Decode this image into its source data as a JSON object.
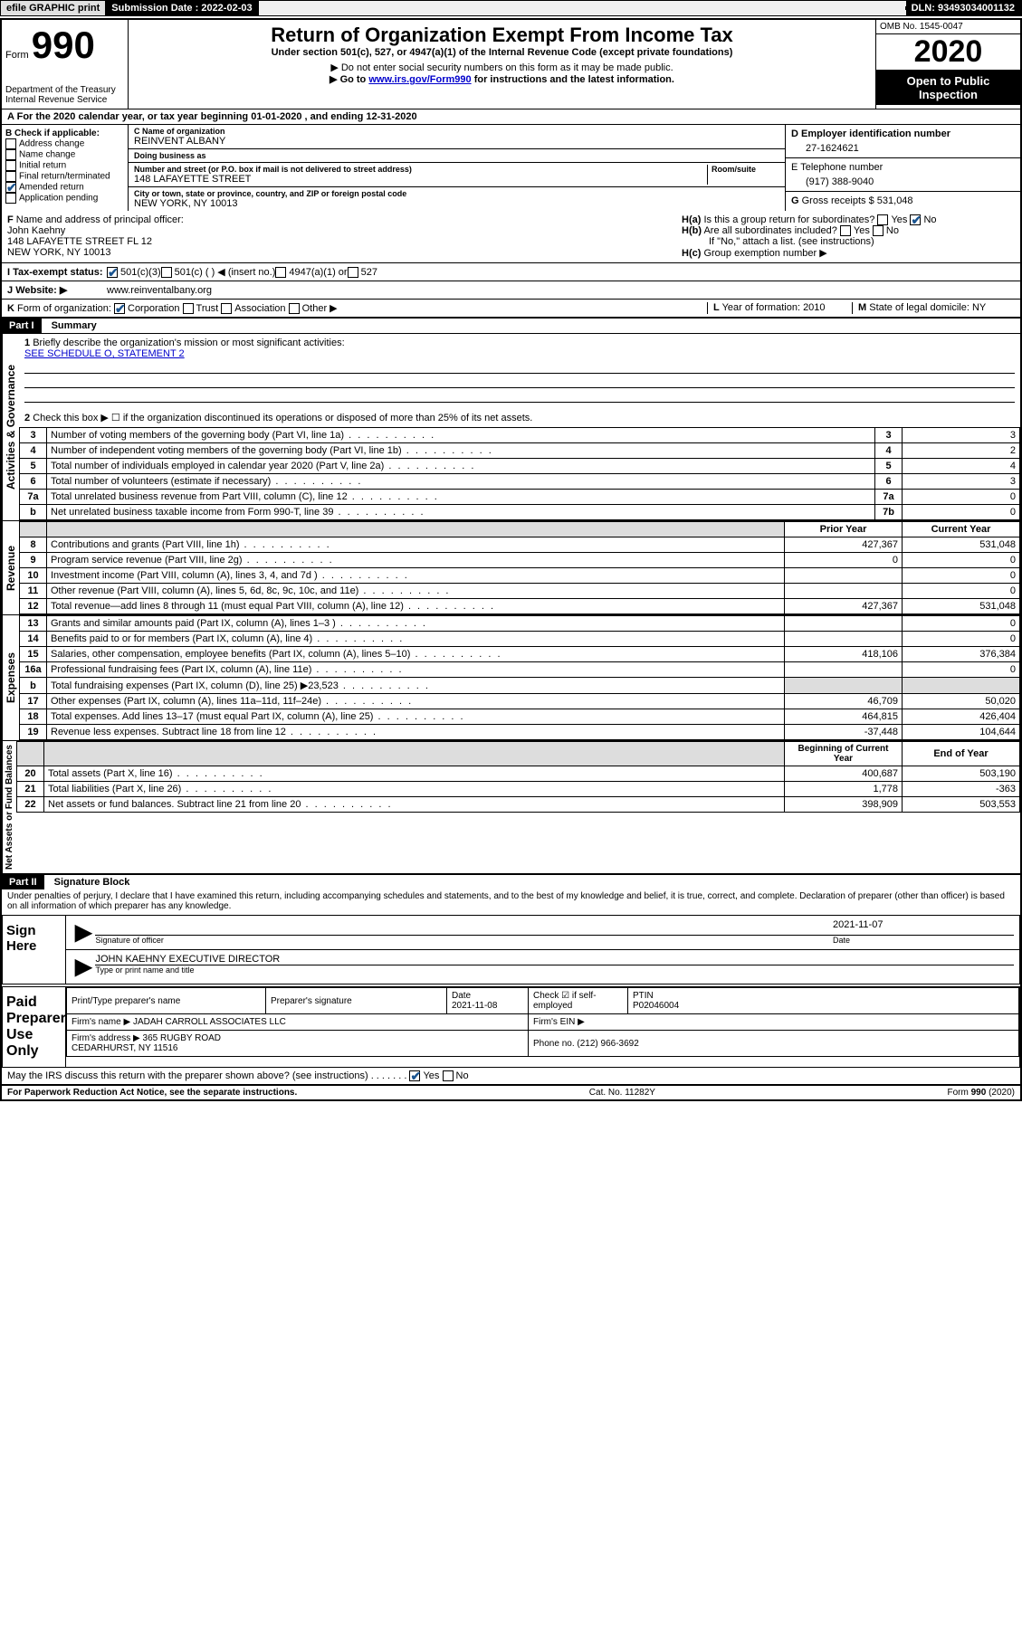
{
  "header_bar": {
    "efile": "efile GRAPHIC print",
    "submission_label": "Submission Date :",
    "submission_date": "2022-02-03",
    "dln_label": "DLN:",
    "dln": "93493034001132"
  },
  "form_header": {
    "form_word": "Form",
    "form_number": "990",
    "dept": "Department of the Treasury",
    "irs": "Internal Revenue Service",
    "title": "Return of Organization Exempt From Income Tax",
    "subtitle": "Under section 501(c), 527, or 4947(a)(1) of the Internal Revenue Code (except private foundations)",
    "note1": "Do not enter social security numbers on this form as it may be made public.",
    "note2_pre": "Go to ",
    "note2_link": "www.irs.gov/Form990",
    "note2_post": " for instructions and the latest information.",
    "omb": "OMB No. 1545-0047",
    "year": "2020",
    "public": "Open to Public Inspection"
  },
  "row_a": "For the 2020 calendar year, or tax year beginning 01-01-2020   , and ending 12-31-2020",
  "section_b": {
    "label": "Check if applicable:",
    "opts": [
      "Address change",
      "Name change",
      "Initial return",
      "Final return/terminated",
      "Amended return",
      "Application pending"
    ],
    "checked_idx": 4
  },
  "section_c": {
    "name_label": "Name of organization",
    "name": "REINVENT ALBANY",
    "dba_label": "Doing business as",
    "dba": "",
    "addr_label": "Number and street (or P.O. box if mail is not delivered to street address)",
    "room_label": "Room/suite",
    "addr": "148 LAFAYETTE STREET",
    "city_label": "City or town, state or province, country, and ZIP or foreign postal code",
    "city": "NEW YORK, NY  10013"
  },
  "section_d": {
    "label": "Employer identification number",
    "value": "27-1624621"
  },
  "section_e": {
    "label": "Telephone number",
    "value": "(917) 388-9040"
  },
  "section_g": {
    "label": "Gross receipts $",
    "value": "531,048"
  },
  "section_f": {
    "label": "Name and address of principal officer:",
    "name": "John Kaehny",
    "addr1": "148 LAFAYETTE STREET FL 12",
    "addr2": "NEW YORK, NY  10013"
  },
  "section_h": {
    "a_label": "Is this a group return for subordinates?",
    "a_no_checked": true,
    "b_label": "Are all subordinates included?",
    "b_note": "If \"No,\" attach a list. (see instructions)",
    "c_label": "Group exemption number ▶"
  },
  "row_i": {
    "label": "Tax-exempt status:",
    "opt1": "501(c)(3)",
    "opt2": "501(c) (  ) ◀ (insert no.)",
    "opt3": "4947(a)(1) or",
    "opt4": "527",
    "checked1": true
  },
  "row_j": {
    "label": "Website: ▶",
    "value": "www.reinventalbany.org"
  },
  "row_k": {
    "label": "Form of organization:",
    "opts": [
      "Corporation",
      "Trust",
      "Association",
      "Other ▶"
    ],
    "checked_idx": 0
  },
  "row_l": {
    "label": "Year of formation:",
    "value": "2010"
  },
  "row_m": {
    "label": "State of legal domicile:",
    "value": "NY"
  },
  "part1": {
    "title": "Part I",
    "heading": "Summary",
    "line1_label": "Briefly describe the organization's mission or most significant activities:",
    "line1_value": "SEE SCHEDULE O, STATEMENT 2",
    "line2_label": "Check this box ▶ ☐  if the organization discontinued its operations or disposed of more than 25% of its net assets."
  },
  "vert_labels": {
    "gov": "Activities & Governance",
    "rev": "Revenue",
    "exp": "Expenses",
    "net": "Net Assets or Fund Balances"
  },
  "gov_rows": [
    {
      "n": "3",
      "desc": "Number of voting members of the governing body (Part VI, line 1a)",
      "box": "3",
      "val": "3"
    },
    {
      "n": "4",
      "desc": "Number of independent voting members of the governing body (Part VI, line 1b)",
      "box": "4",
      "val": "2"
    },
    {
      "n": "5",
      "desc": "Total number of individuals employed in calendar year 2020 (Part V, line 2a)",
      "box": "5",
      "val": "4"
    },
    {
      "n": "6",
      "desc": "Total number of volunteers (estimate if necessary)",
      "box": "6",
      "val": "3"
    },
    {
      "n": "7a",
      "desc": "Total unrelated business revenue from Part VIII, column (C), line 12",
      "box": "7a",
      "val": "0"
    },
    {
      "n": "b",
      "desc": "Net unrelated business taxable income from Form 990-T, line 39",
      "box": "7b",
      "val": "0"
    }
  ],
  "col_headers": {
    "prior": "Prior Year",
    "current": "Current Year"
  },
  "rev_rows": [
    {
      "n": "8",
      "desc": "Contributions and grants (Part VIII, line 1h)",
      "prior": "427,367",
      "cur": "531,048"
    },
    {
      "n": "9",
      "desc": "Program service revenue (Part VIII, line 2g)",
      "prior": "0",
      "cur": "0"
    },
    {
      "n": "10",
      "desc": "Investment income (Part VIII, column (A), lines 3, 4, and 7d )",
      "prior": "",
      "cur": "0"
    },
    {
      "n": "11",
      "desc": "Other revenue (Part VIII, column (A), lines 5, 6d, 8c, 9c, 10c, and 11e)",
      "prior": "",
      "cur": "0"
    },
    {
      "n": "12",
      "desc": "Total revenue—add lines 8 through 11 (must equal Part VIII, column (A), line 12)",
      "prior": "427,367",
      "cur": "531,048"
    }
  ],
  "exp_rows": [
    {
      "n": "13",
      "desc": "Grants and similar amounts paid (Part IX, column (A), lines 1–3 )",
      "prior": "",
      "cur": "0"
    },
    {
      "n": "14",
      "desc": "Benefits paid to or for members (Part IX, column (A), line 4)",
      "prior": "",
      "cur": "0"
    },
    {
      "n": "15",
      "desc": "Salaries, other compensation, employee benefits (Part IX, column (A), lines 5–10)",
      "prior": "418,106",
      "cur": "376,384"
    },
    {
      "n": "16a",
      "desc": "Professional fundraising fees (Part IX, column (A), line 11e)",
      "prior": "",
      "cur": "0"
    },
    {
      "n": "b",
      "desc": "Total fundraising expenses (Part IX, column (D), line 25) ▶23,523",
      "prior": "shaded",
      "cur": "shaded"
    },
    {
      "n": "17",
      "desc": "Other expenses (Part IX, column (A), lines 11a–11d, 11f–24e)",
      "prior": "46,709",
      "cur": "50,020"
    },
    {
      "n": "18",
      "desc": "Total expenses. Add lines 13–17 (must equal Part IX, column (A), line 25)",
      "prior": "464,815",
      "cur": "426,404"
    },
    {
      "n": "19",
      "desc": "Revenue less expenses. Subtract line 18 from line 12",
      "prior": "-37,448",
      "cur": "104,644"
    }
  ],
  "net_headers": {
    "begin": "Beginning of Current Year",
    "end": "End of Year"
  },
  "net_rows": [
    {
      "n": "20",
      "desc": "Total assets (Part X, line 16)",
      "prior": "400,687",
      "cur": "503,190"
    },
    {
      "n": "21",
      "desc": "Total liabilities (Part X, line 26)",
      "prior": "1,778",
      "cur": "-363"
    },
    {
      "n": "22",
      "desc": "Net assets or fund balances. Subtract line 21 from line 20",
      "prior": "398,909",
      "cur": "503,553"
    }
  ],
  "part2": {
    "title": "Part II",
    "heading": "Signature Block",
    "penalty": "Under penalties of perjury, I declare that I have examined this return, including accompanying schedules and statements, and to the best of my knowledge and belief, it is true, correct, and complete. Declaration of preparer (other than officer) is based on all information of which preparer has any knowledge."
  },
  "sign": {
    "left": "Sign Here",
    "sig_label": "Signature of officer",
    "date_label": "Date",
    "date": "2021-11-07",
    "name": "JOHN KAEHNY EXECUTIVE DIRECTOR",
    "name_label": "Type or print name and title"
  },
  "preparer": {
    "left": "Paid Preparer Use Only",
    "name_label": "Print/Type preparer's name",
    "sig_label": "Preparer's signature",
    "date_label": "Date",
    "date": "2021-11-08",
    "check_label": "Check ☑ if self-employed",
    "ptin_label": "PTIN",
    "ptin": "P02046004",
    "firm_name_label": "Firm's name    ▶",
    "firm_name": "JADAH CARROLL ASSOCIATES LLC",
    "firm_ein_label": "Firm's EIN ▶",
    "firm_addr_label": "Firm's address ▶",
    "firm_addr1": "365 RUGBY ROAD",
    "firm_addr2": "CEDARHURST, NY  11516",
    "phone_label": "Phone no.",
    "phone": "(212) 966-3692"
  },
  "discuss": {
    "label": "May the IRS discuss this return with the preparer shown above? (see instructions)",
    "yes_checked": true
  },
  "footer": {
    "left": "For Paperwork Reduction Act Notice, see the separate instructions.",
    "center": "Cat. No. 11282Y",
    "right": "Form 990 (2020)"
  }
}
